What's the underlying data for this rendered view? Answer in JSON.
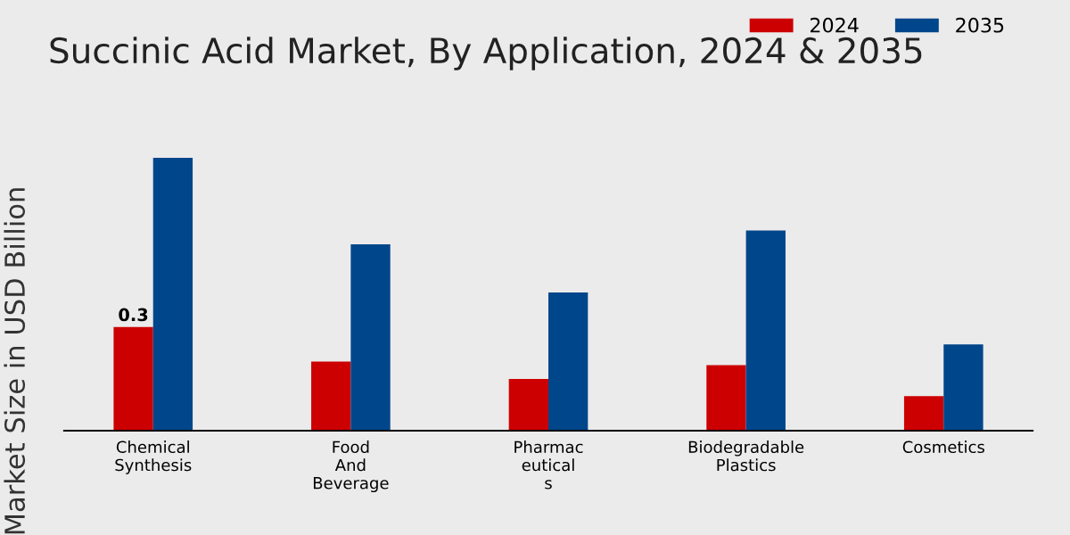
{
  "chart_data": {
    "type": "bar",
    "title": "Succinic Acid Market, By Application, 2024 & 2035",
    "ylabel": "Market Size in USD Billion",
    "categories": [
      "Chemical\nSynthesis",
      "Food\nAnd\nBeverage",
      "Pharmac\neutical\ns",
      "Biodegradable\nPlastics",
      "Cosmetics"
    ],
    "series": [
      {
        "name": "2024",
        "color": "#cc0000",
        "values": [
          0.3,
          0.2,
          0.15,
          0.19,
          0.1
        ],
        "value_labels": [
          "0.3",
          null,
          null,
          null,
          null
        ]
      },
      {
        "name": "2035",
        "color": "#00468b",
        "values": [
          0.79,
          0.54,
          0.4,
          0.58,
          0.25
        ]
      }
    ],
    "legend": "top right",
    "grid": false
  }
}
